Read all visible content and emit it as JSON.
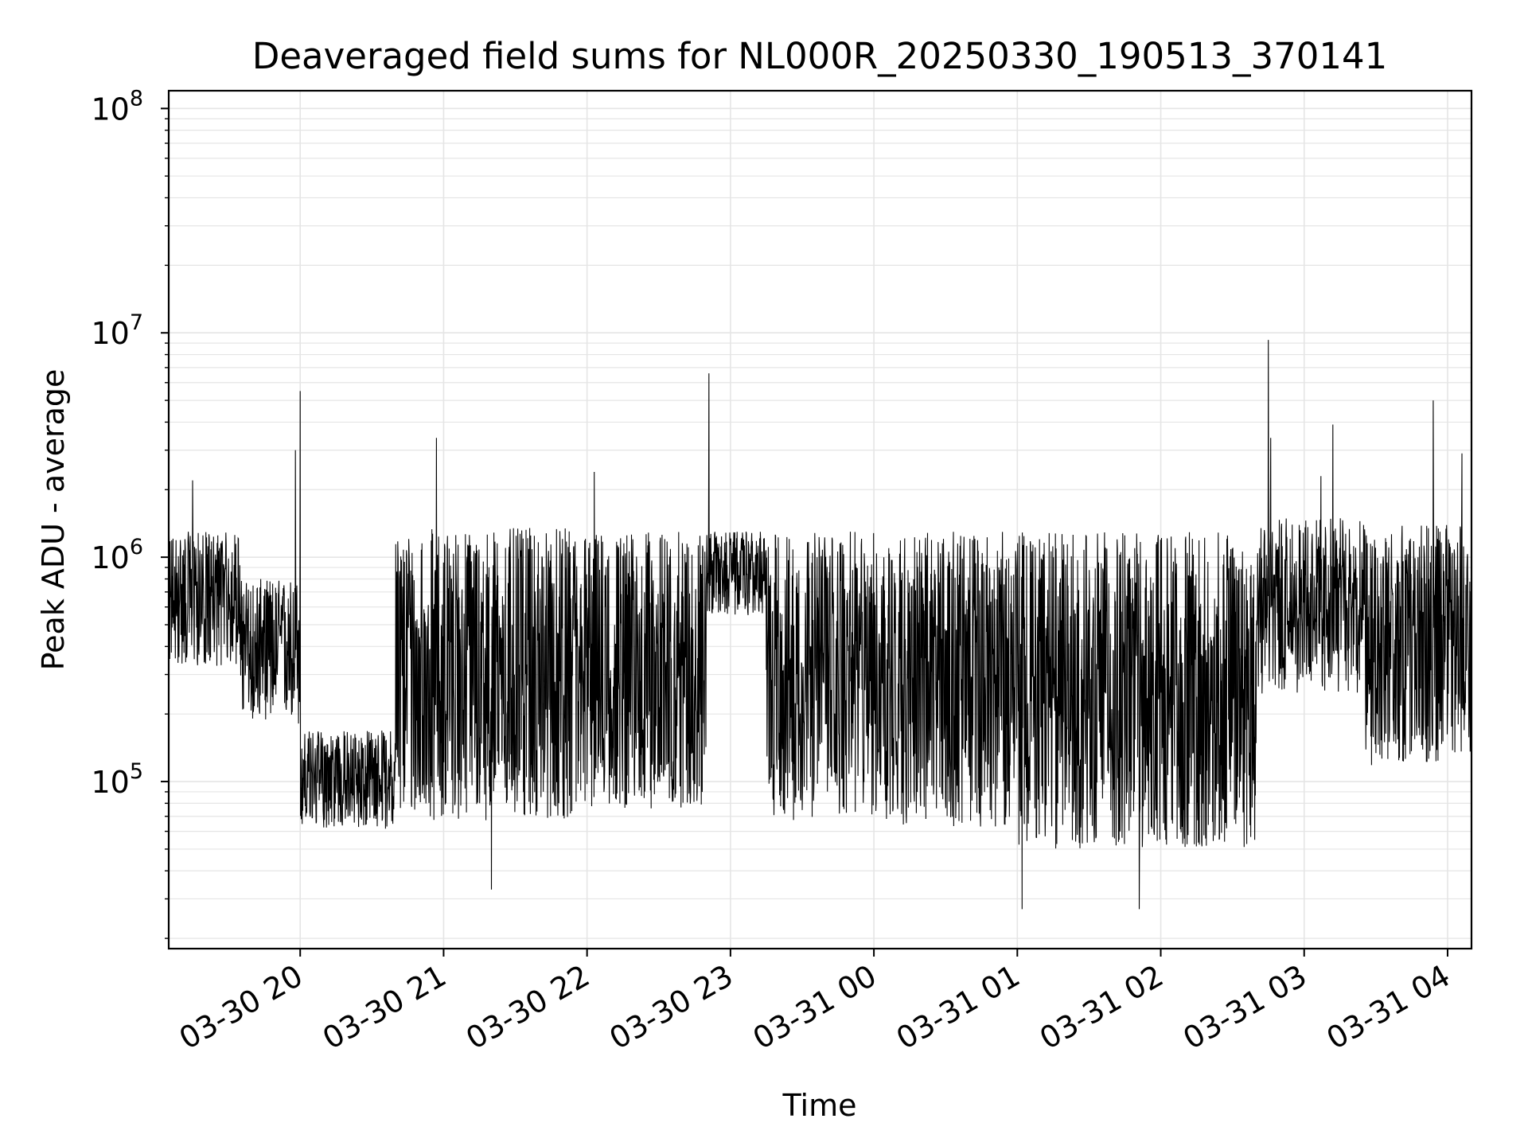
{
  "chart_data": {
    "type": "line",
    "title": "Deaveraged field sums for NL000R_20250330_190513_370141",
    "xlabel": "Time",
    "ylabel": "Peak ADU - average",
    "yscale": "log",
    "ylim": [
      18000,
      120000000
    ],
    "xlim": [
      "2025-03-30 19:05",
      "2025-03-31 04:10"
    ],
    "grid": true,
    "line_color": "#000000",
    "grid_color": "#e5e5e5",
    "x_ticks": [
      {
        "value": "2025-03-30 20:00",
        "label": "03-30 20"
      },
      {
        "value": "2025-03-30 21:00",
        "label": "03-30 21"
      },
      {
        "value": "2025-03-30 22:00",
        "label": "03-30 22"
      },
      {
        "value": "2025-03-30 23:00",
        "label": "03-30 23"
      },
      {
        "value": "2025-03-31 00:00",
        "label": "03-31 00"
      },
      {
        "value": "2025-03-31 01:00",
        "label": "03-31 01"
      },
      {
        "value": "2025-03-31 02:00",
        "label": "03-31 02"
      },
      {
        "value": "2025-03-31 03:00",
        "label": "03-31 03"
      },
      {
        "value": "2025-03-31 04:00",
        "label": "03-31 04"
      }
    ],
    "y_ticks": [
      {
        "value": 100000,
        "base": "10",
        "exp": "5"
      },
      {
        "value": 1000000,
        "base": "10",
        "exp": "6"
      },
      {
        "value": 10000000,
        "base": "10",
        "exp": "7"
      },
      {
        "value": 100000000,
        "base": "10",
        "exp": "8"
      }
    ],
    "series": [
      {
        "segments": [
          {
            "start": "2025-03-30 19:05",
            "end": "2025-03-30 19:35",
            "low": 280000,
            "high": 1300000
          },
          {
            "start": "2025-03-30 19:35",
            "end": "2025-03-30 20:00",
            "low": 160000,
            "high": 800000
          },
          {
            "start": "2025-03-30 20:00",
            "end": "2025-03-30 20:40",
            "low": 55000,
            "high": 170000
          },
          {
            "start": "2025-03-30 20:40",
            "end": "2025-03-30 22:00",
            "low": 48000,
            "high": 1350000
          },
          {
            "start": "2025-03-30 22:00",
            "end": "2025-03-30 22:50",
            "low": 55000,
            "high": 1300000
          },
          {
            "start": "2025-03-30 22:50",
            "end": "2025-03-30 23:15",
            "low": 500000,
            "high": 1300000
          },
          {
            "start": "2025-03-30 23:15",
            "end": "2025-03-31 00:00",
            "low": 50000,
            "high": 1300000
          },
          {
            "start": "2025-03-31 00:00",
            "end": "2025-03-31 01:00",
            "low": 45000,
            "high": 1300000
          },
          {
            "start": "2025-03-31 01:00",
            "end": "2025-03-31 02:40",
            "low": 35000,
            "high": 1300000
          },
          {
            "start": "2025-03-31 02:40",
            "end": "2025-03-31 03:25",
            "low": 200000,
            "high": 1500000
          },
          {
            "start": "2025-03-31 03:25",
            "end": "2025-03-31 04:10",
            "low": 90000,
            "high": 1400000
          }
        ],
        "spikes": [
          {
            "x": "2025-03-30 19:15",
            "y": 2200000
          },
          {
            "x": "2025-03-30 19:58",
            "y": 3000000
          },
          {
            "x": "2025-03-30 20:00",
            "y": 5500000
          },
          {
            "x": "2025-03-30 20:57",
            "y": 3400000
          },
          {
            "x": "2025-03-30 22:03",
            "y": 2400000
          },
          {
            "x": "2025-03-30 22:51",
            "y": 6600000
          },
          {
            "x": "2025-03-31 02:45",
            "y": 9300000
          },
          {
            "x": "2025-03-31 02:46",
            "y": 3400000
          },
          {
            "x": "2025-03-31 03:07",
            "y": 2300000
          },
          {
            "x": "2025-03-31 03:12",
            "y": 3900000
          },
          {
            "x": "2025-03-31 03:54",
            "y": 5000000
          },
          {
            "x": "2025-03-31 04:06",
            "y": 2900000
          }
        ],
        "dips": [
          {
            "x": "2025-03-30 21:20",
            "y": 33000
          },
          {
            "x": "2025-03-31 01:02",
            "y": 27000
          },
          {
            "x": "2025-03-31 01:51",
            "y": 27000
          }
        ]
      }
    ]
  }
}
